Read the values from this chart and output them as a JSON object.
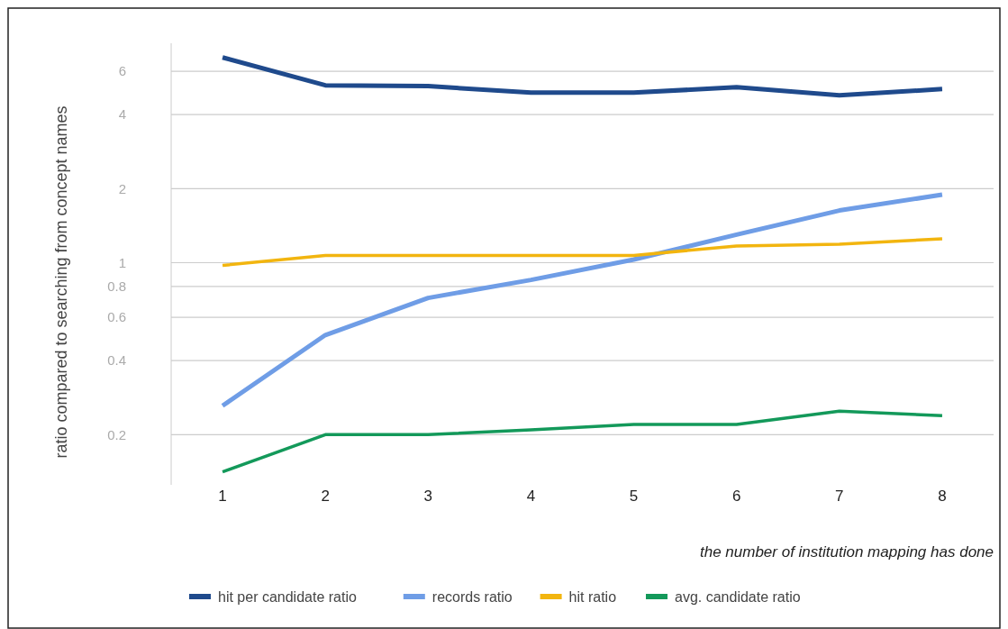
{
  "chart_data": {
    "type": "line",
    "xlabel": "the number of institution mapping has done",
    "ylabel": "ratio compared to searching from concept names",
    "categories": [
      "1",
      "2",
      "3",
      "4",
      "5",
      "6",
      "7",
      "8"
    ],
    "series": [
      {
        "name": "hit per candidate ratio",
        "color": "#1f4a8c",
        "values": [
          6.83,
          5.26,
          5.22,
          4.91,
          4.91,
          5.17,
          4.79,
          5.08
        ]
      },
      {
        "name": "records ratio",
        "color": "#6f9de6",
        "values": [
          0.262,
          0.508,
          0.719,
          0.851,
          1.03,
          1.3,
          1.63,
          1.89
        ]
      },
      {
        "name": "hit ratio",
        "color": "#f2b50f",
        "values": [
          0.975,
          1.07,
          1.07,
          1.07,
          1.07,
          1.17,
          1.19,
          1.25
        ]
      },
      {
        "name": "avg. candidate ratio",
        "color": "#13995a",
        "values": [
          0.141,
          0.2,
          0.2,
          0.209,
          0.22,
          0.22,
          0.249,
          0.239
        ]
      }
    ],
    "log": true,
    "ylim": [
      0.125,
      7.8
    ],
    "yticks": [
      0.2,
      0.4,
      0.6,
      0.8,
      1,
      2,
      4,
      6
    ],
    "grid": "y",
    "legend": "bottom",
    "marker": "none",
    "line_style": "solid"
  }
}
